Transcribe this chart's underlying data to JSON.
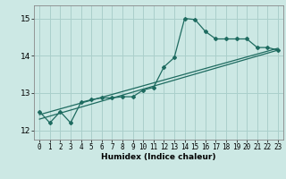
{
  "xlabel": "Humidex (Indice chaleur)",
  "bg_color": "#cce8e4",
  "line_color": "#1e6b60",
  "grid_color": "#aacfcb",
  "xlim": [
    -0.5,
    23.5
  ],
  "ylim": [
    11.75,
    15.35
  ],
  "xticks": [
    0,
    1,
    2,
    3,
    4,
    5,
    6,
    7,
    8,
    9,
    10,
    11,
    12,
    13,
    14,
    15,
    16,
    17,
    18,
    19,
    20,
    21,
    22,
    23
  ],
  "yticks": [
    12,
    13,
    14,
    15
  ],
  "series1_x": [
    0,
    1,
    2,
    3,
    4,
    5,
    6,
    7,
    8,
    9,
    10,
    11,
    12,
    13,
    14,
    15,
    16,
    17,
    18,
    19,
    20,
    21,
    22,
    23
  ],
  "series1_y": [
    12.5,
    12.2,
    12.5,
    12.2,
    12.75,
    12.82,
    12.87,
    12.87,
    12.9,
    12.9,
    13.08,
    13.15,
    13.7,
    13.95,
    15.0,
    14.97,
    14.65,
    14.45,
    14.45,
    14.45,
    14.45,
    14.22,
    14.22,
    14.15
  ],
  "trend1_x": [
    0,
    23
  ],
  "trend1_y": [
    12.42,
    14.2
  ],
  "trend2_x": [
    0,
    23
  ],
  "trend2_y": [
    12.3,
    14.15
  ]
}
